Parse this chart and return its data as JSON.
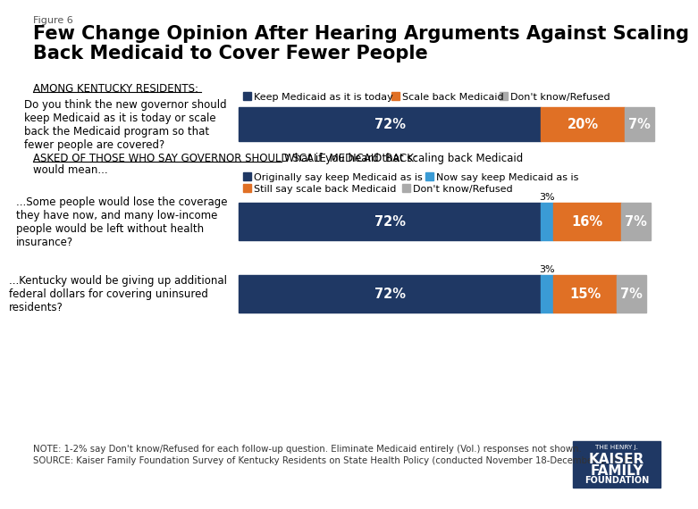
{
  "figure_label": "Figure 6",
  "title": "Few Change Opinion After Hearing Arguments Against Scaling\nBack Medicaid to Cover Fewer People",
  "section1_label": "AMONG KENTUCKY RESIDENTS:",
  "section2_label": "ASKED OF THOSE WHO SAY GOVERNOR SHOULD SCALE MEDICAID BACK:",
  "section2_suffix": " What if you heard that scaling back Medicaid\nwould mean...",
  "q1_label": "Do you think the new governor should\nkeep Medicaid as it is today or scale\nback the Medicaid program so that\nfewer people are covered?",
  "q1_data": [
    72,
    20,
    7
  ],
  "q1_colors": [
    "#1F3864",
    "#E07025",
    "#AAAAAA"
  ],
  "q1_labels": [
    "72%",
    "20%",
    "7%"
  ],
  "legend1": [
    {
      "label": "Keep Medicaid as it is today",
      "color": "#1F3864"
    },
    {
      "label": "Scale back Medicaid",
      "color": "#E07025"
    },
    {
      "label": "Don't know/Refused",
      "color": "#AAAAAA"
    }
  ],
  "q2_label": "...Some people would lose the coverage\nthey have now, and many low-income\npeople would be left without health\ninsurance?",
  "q2_data": [
    72,
    3,
    16,
    7
  ],
  "q2_colors": [
    "#1F3864",
    "#3A9BD5",
    "#E07025",
    "#AAAAAA"
  ],
  "q2_labels": [
    "72%",
    "",
    "16%",
    "7%"
  ],
  "q2_top_label": "3%",
  "q3_label": "...Kentucky would be giving up additional\nfederal dollars for covering uninsured\nresidents?",
  "q3_data": [
    72,
    3,
    15,
    7
  ],
  "q3_colors": [
    "#1F3864",
    "#3A9BD5",
    "#E07025",
    "#AAAAAA"
  ],
  "q3_labels": [
    "72%",
    "",
    "15%",
    "7%"
  ],
  "q3_top_label": "3%",
  "legend2": [
    {
      "label": "Originally say keep Medicaid as is",
      "color": "#1F3864"
    },
    {
      "label": "Now say keep Medicaid as is",
      "color": "#3A9BD5"
    },
    {
      "label": "Still say scale back Medicaid",
      "color": "#E07025"
    },
    {
      "label": "Don't know/Refused",
      "color": "#AAAAAA"
    }
  ],
  "note_line1": "NOTE: 1-2% say Don't know/Refused for each follow-up question. Eliminate Medicaid entirely (Vol.) responses not shown.",
  "note_line2": "SOURCE: Kaiser Family Foundation Survey of Kentucky Residents on State Health Policy (conducted November 18-December 1, 2015)",
  "bg_color": "#FFFFFF",
  "text_color": "#000000",
  "dark_navy": "#1F3864",
  "orange": "#E07025",
  "gray": "#AAAAAA",
  "blue": "#3A9BD5"
}
